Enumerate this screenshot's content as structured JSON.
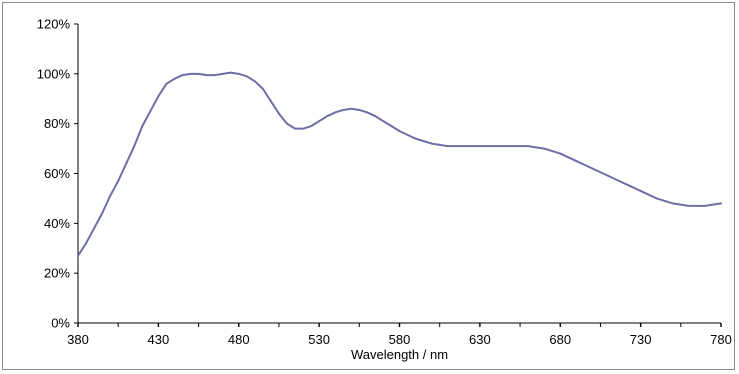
{
  "chart_data": {
    "type": "line",
    "title": "",
    "xlabel": "Wavelength / nm",
    "ylabel": "",
    "xlim": [
      380,
      780
    ],
    "ylim": [
      0,
      120
    ],
    "x_ticks": [
      380,
      430,
      480,
      530,
      580,
      630,
      680,
      730,
      780
    ],
    "x_tick_labels": [
      "380",
      "430",
      "480",
      "530",
      "580",
      "630",
      "680",
      "730",
      "780"
    ],
    "y_ticks": [
      0,
      20,
      40,
      60,
      80,
      100,
      120
    ],
    "y_tick_labels": [
      "0%",
      "20%",
      "40%",
      "60%",
      "80%",
      "100%",
      "120%"
    ],
    "grid": false,
    "legend": "none",
    "series": [
      {
        "color": "#6e6ea6",
        "x": [
          380,
          385,
          390,
          395,
          400,
          405,
          410,
          415,
          420,
          425,
          430,
          435,
          440,
          445,
          450,
          455,
          460,
          465,
          470,
          475,
          480,
          485,
          490,
          495,
          500,
          505,
          510,
          515,
          520,
          525,
          530,
          535,
          540,
          545,
          550,
          555,
          560,
          565,
          570,
          575,
          580,
          585,
          590,
          595,
          600,
          605,
          610,
          615,
          620,
          625,
          630,
          635,
          640,
          645,
          650,
          655,
          660,
          665,
          670,
          675,
          680,
          685,
          690,
          695,
          700,
          705,
          710,
          715,
          720,
          725,
          730,
          735,
          740,
          745,
          750,
          755,
          760,
          765,
          770,
          775,
          780
        ],
        "values": [
          27,
          32,
          38,
          44,
          51,
          57,
          64,
          71,
          79,
          85,
          91,
          96,
          98,
          99.5,
          100,
          100,
          99.5,
          99.5,
          100,
          100.5,
          100,
          99,
          97,
          94,
          89,
          84,
          80,
          78,
          78,
          79,
          81,
          83,
          84.5,
          85.5,
          86,
          85.5,
          84.5,
          83,
          81,
          79,
          77,
          75.5,
          74,
          73,
          72,
          71.5,
          71,
          71,
          71,
          71,
          71,
          71,
          71,
          71,
          71,
          71,
          71,
          70.5,
          70,
          69,
          68,
          66.5,
          65,
          63.5,
          62,
          60.5,
          59,
          57.5,
          56,
          54.5,
          53,
          51.5,
          50,
          49,
          48,
          47.5,
          47,
          47,
          47,
          47.5,
          48
        ]
      }
    ]
  }
}
